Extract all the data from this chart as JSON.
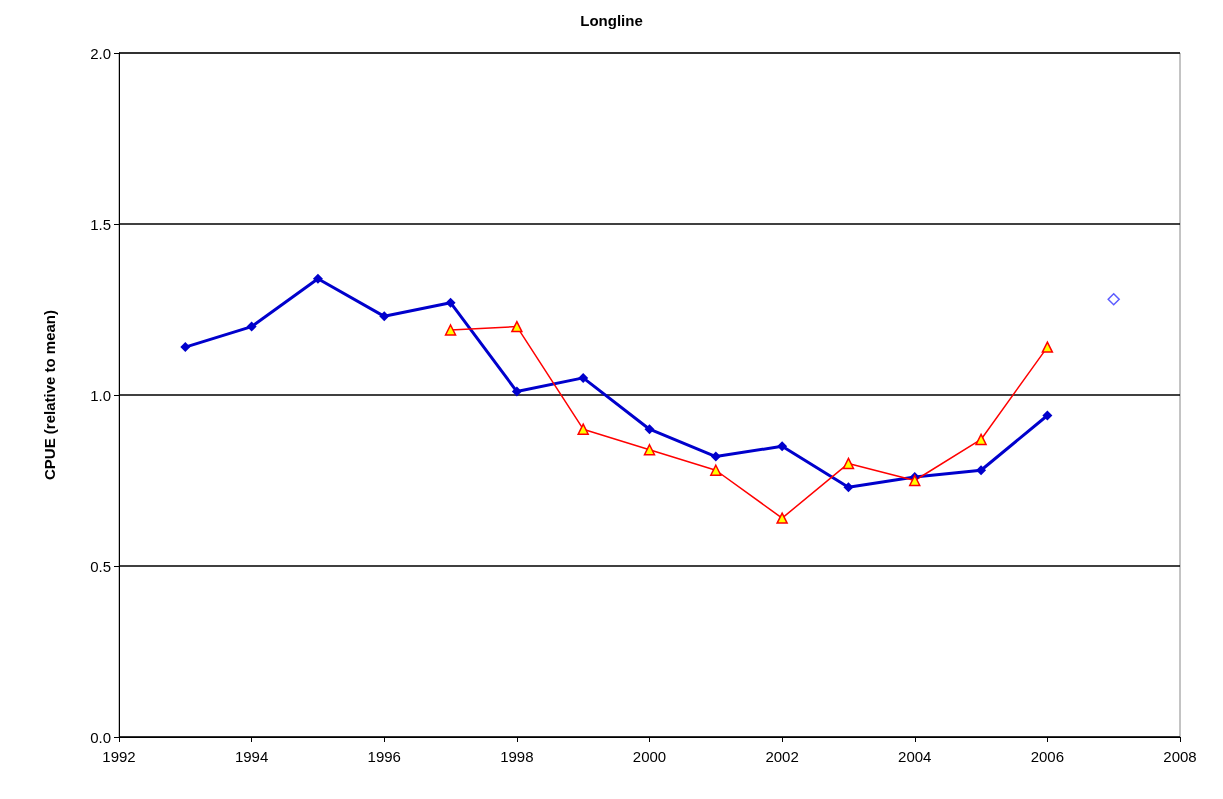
{
  "chart_data": {
    "type": "line",
    "title": "Longline",
    "ylabel": "CPUE (relative to mean)",
    "xlim": [
      1992,
      2008
    ],
    "xticks": [
      1992,
      1994,
      1996,
      1998,
      2000,
      2002,
      2004,
      2006,
      2008
    ],
    "ylim": [
      0,
      2
    ],
    "yticks": [
      {
        "value": 0,
        "label": "0.0"
      },
      0.5,
      {
        "value": 1,
        "label": "1.0"
      },
      1.5,
      {
        "value": 2,
        "label": "2.0"
      }
    ],
    "grid": "y",
    "series": [
      {
        "color": "#0000cc",
        "marker": "diamond",
        "x": [
          1993,
          1994,
          1995,
          1996,
          1997,
          1998,
          1999,
          2000,
          2001,
          2002,
          2003,
          2004,
          2005,
          2006
        ],
        "values": [
          1.14,
          1.2,
          1.34,
          1.23,
          1.27,
          1.01,
          1.05,
          0.9,
          0.82,
          0.85,
          0.73,
          0.76,
          0.78,
          0.94
        ]
      },
      {
        "color": "#ff0000",
        "marker": "triangle",
        "x": [
          1997,
          1998,
          1999,
          2000,
          2001,
          2002,
          2003,
          2004,
          2005,
          2006
        ],
        "values": [
          1.19,
          1.2,
          0.9,
          0.84,
          0.78,
          0.64,
          0.8,
          0.75,
          0.87,
          1.14
        ]
      },
      {
        "type": "scatter",
        "color": "#3333ff",
        "marker": "diamond",
        "x": [
          2007
        ],
        "values": [
          1.28
        ]
      }
    ]
  }
}
